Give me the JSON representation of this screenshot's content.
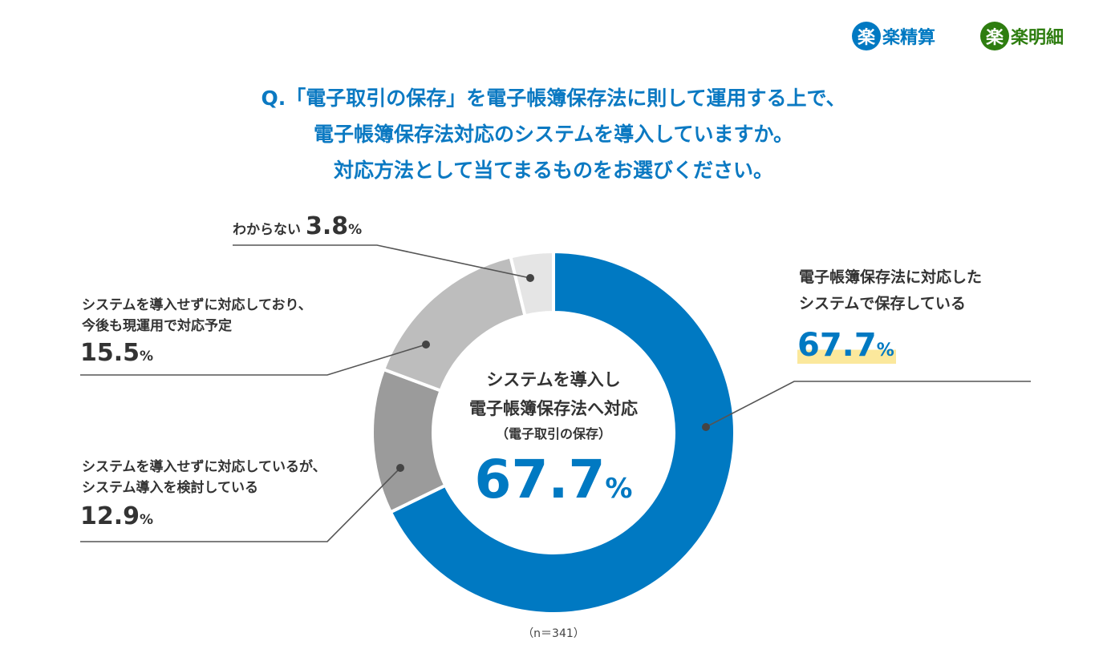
{
  "logos": [
    {
      "mark": "楽",
      "text": "楽精算",
      "color": "#0079c2"
    },
    {
      "mark": "楽",
      "text": "楽明細",
      "color": "#2e7d10"
    }
  ],
  "title_lines": [
    "Q.「電子取引の保存」を電子帳簿保存法に則して運用する上で、",
    "電子帳簿保存法対応のシステムを導入していますか。",
    "対応方法として当てまるものをお選びください。"
  ],
  "chart_data": {
    "type": "pie",
    "donut": true,
    "start": "top",
    "direction": "clockwise",
    "slices": [
      {
        "label_lines": [
          "電子帳簿保存法に対応した",
          "システムで保存している"
        ],
        "value": 67.7,
        "value_text": "67.7",
        "color": "#0079c2"
      },
      {
        "label_lines": [
          "システムを導入せずに対応しているが、",
          "システム導入を検討している"
        ],
        "value": 12.9,
        "value_text": "12.9",
        "color": "#9b9b9b"
      },
      {
        "label_lines": [
          "システムを導入せずに対応しており、",
          "今後も現運用で対応予定"
        ],
        "value": 15.5,
        "value_text": "15.5",
        "color": "#bdbdbd"
      },
      {
        "label_lines": [
          "わからない"
        ],
        "value": 3.8,
        "value_text": "3.8",
        "color": "#e5e5e5"
      }
    ],
    "percent_sign": "%",
    "center_lines": [
      "システムを導入し",
      "電子帳簿保存法へ対応",
      "（電子取引の保存）"
    ],
    "center_value": "67.7",
    "highlight_color": "#fbe89c",
    "note": "（n＝341）"
  }
}
